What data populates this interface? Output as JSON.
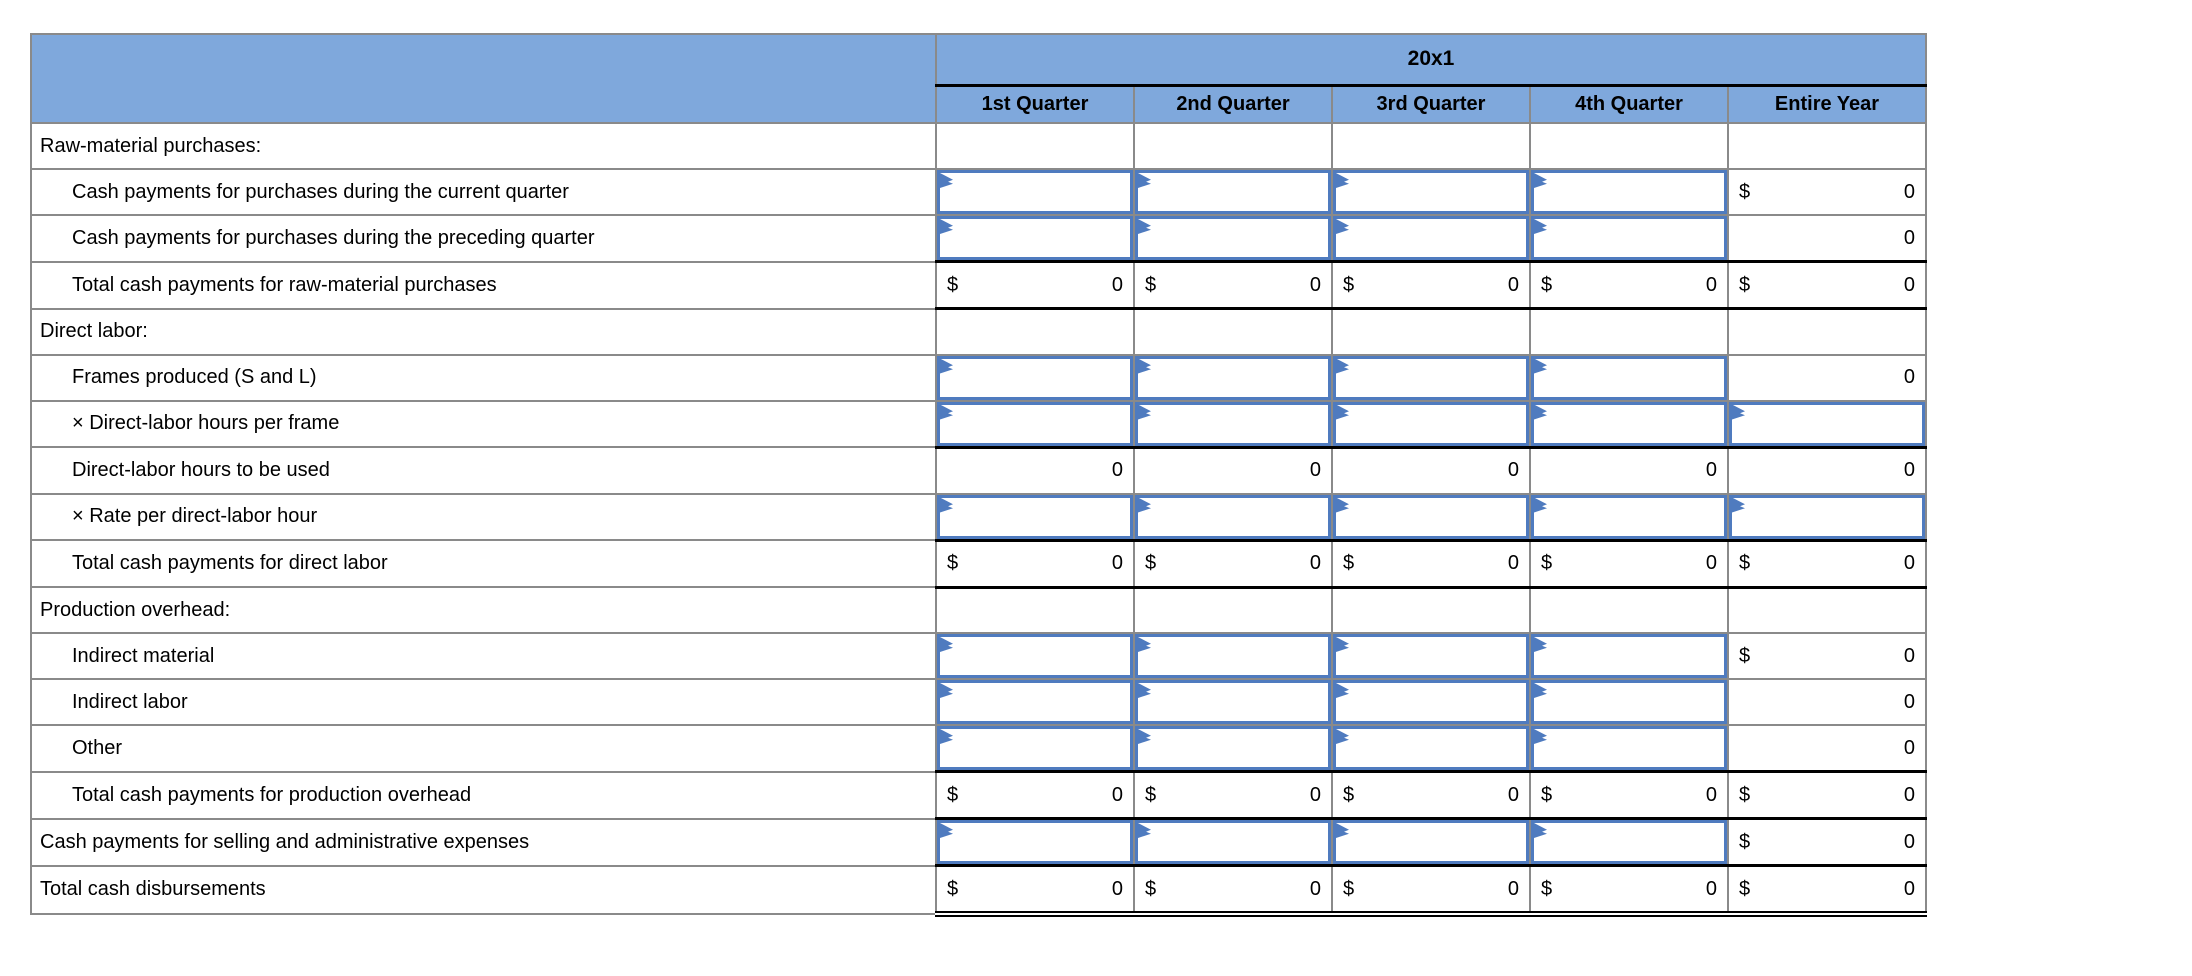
{
  "table": {
    "year_label": "20x1",
    "column_headers": [
      "1st Quarter",
      "2nd Quarter",
      "3rd Quarter",
      "4th Quarter",
      "Entire Year"
    ],
    "rows": [
      {
        "label": "Raw-material purchases:",
        "indent": 0,
        "rule": "",
        "cells": [
          {
            "t": "e"
          },
          {
            "t": "e"
          },
          {
            "t": "e"
          },
          {
            "t": "e"
          },
          {
            "t": "e"
          }
        ]
      },
      {
        "label": "Cash payments for purchases during the current quarter",
        "indent": 1,
        "rule": "",
        "cells": [
          {
            "t": "i"
          },
          {
            "t": "i"
          },
          {
            "t": "i"
          },
          {
            "t": "i"
          },
          {
            "t": "v",
            "p": "$",
            "v": "0"
          }
        ]
      },
      {
        "label": "Cash payments for purchases during the preceding quarter",
        "indent": 1,
        "rule": "",
        "cells": [
          {
            "t": "i"
          },
          {
            "t": "i"
          },
          {
            "t": "i"
          },
          {
            "t": "i"
          },
          {
            "t": "v",
            "v": "0"
          }
        ]
      },
      {
        "label": "Total cash payments for raw-material purchases",
        "indent": 1,
        "rule": "tb",
        "cells": [
          {
            "t": "v",
            "p": "$",
            "v": "0"
          },
          {
            "t": "v",
            "p": "$",
            "v": "0"
          },
          {
            "t": "v",
            "p": "$",
            "v": "0"
          },
          {
            "t": "v",
            "p": "$",
            "v": "0"
          },
          {
            "t": "v",
            "p": "$",
            "v": "0"
          }
        ]
      },
      {
        "label": "Direct labor:",
        "indent": 0,
        "rule": "",
        "cells": [
          {
            "t": "e"
          },
          {
            "t": "e"
          },
          {
            "t": "e"
          },
          {
            "t": "e"
          },
          {
            "t": "e"
          }
        ]
      },
      {
        "label": "Frames produced (S and L)",
        "indent": 1,
        "rule": "",
        "cells": [
          {
            "t": "i"
          },
          {
            "t": "i"
          },
          {
            "t": "i"
          },
          {
            "t": "i"
          },
          {
            "t": "v",
            "v": "0"
          }
        ]
      },
      {
        "label": "× Direct-labor hours per frame",
        "indent": 1,
        "rule": "",
        "cells": [
          {
            "t": "i"
          },
          {
            "t": "i"
          },
          {
            "t": "i"
          },
          {
            "t": "i"
          },
          {
            "t": "i"
          }
        ]
      },
      {
        "label": "Direct-labor hours to be used",
        "indent": 1,
        "rule": "t",
        "cells": [
          {
            "t": "v",
            "v": "0"
          },
          {
            "t": "v",
            "v": "0"
          },
          {
            "t": "v",
            "v": "0"
          },
          {
            "t": "v",
            "v": "0"
          },
          {
            "t": "v",
            "v": "0"
          }
        ]
      },
      {
        "label": "× Rate per direct-labor hour",
        "indent": 1,
        "rule": "",
        "cells": [
          {
            "t": "i"
          },
          {
            "t": "i"
          },
          {
            "t": "i"
          },
          {
            "t": "i"
          },
          {
            "t": "i"
          }
        ]
      },
      {
        "label": "Total cash payments for direct labor",
        "indent": 1,
        "rule": "tb",
        "cells": [
          {
            "t": "v",
            "p": "$",
            "v": "0"
          },
          {
            "t": "v",
            "p": "$",
            "v": "0"
          },
          {
            "t": "v",
            "p": "$",
            "v": "0"
          },
          {
            "t": "v",
            "p": "$",
            "v": "0"
          },
          {
            "t": "v",
            "p": "$",
            "v": "0"
          }
        ]
      },
      {
        "label": "Production overhead:",
        "indent": 0,
        "rule": "",
        "cells": [
          {
            "t": "e"
          },
          {
            "t": "e"
          },
          {
            "t": "e"
          },
          {
            "t": "e"
          },
          {
            "t": "e"
          }
        ]
      },
      {
        "label": "Indirect material",
        "indent": 1,
        "rule": "",
        "cells": [
          {
            "t": "i"
          },
          {
            "t": "i"
          },
          {
            "t": "i"
          },
          {
            "t": "i"
          },
          {
            "t": "v",
            "p": "$",
            "v": "0"
          }
        ]
      },
      {
        "label": "Indirect labor",
        "indent": 1,
        "rule": "",
        "cells": [
          {
            "t": "i"
          },
          {
            "t": "i"
          },
          {
            "t": "i"
          },
          {
            "t": "i"
          },
          {
            "t": "v",
            "v": "0"
          }
        ]
      },
      {
        "label": "Other",
        "indent": 1,
        "rule": "",
        "cells": [
          {
            "t": "i"
          },
          {
            "t": "i"
          },
          {
            "t": "i"
          },
          {
            "t": "i"
          },
          {
            "t": "v",
            "v": "0"
          }
        ]
      },
      {
        "label": "Total cash payments for production overhead",
        "indent": 1,
        "rule": "tb",
        "cells": [
          {
            "t": "v",
            "p": "$",
            "v": "0"
          },
          {
            "t": "v",
            "p": "$",
            "v": "0"
          },
          {
            "t": "v",
            "p": "$",
            "v": "0"
          },
          {
            "t": "v",
            "p": "$",
            "v": "0"
          },
          {
            "t": "v",
            "p": "$",
            "v": "0"
          }
        ]
      },
      {
        "label": "Cash payments for selling and administrative expenses",
        "indent": 0,
        "rule": "",
        "cells": [
          {
            "t": "i"
          },
          {
            "t": "i"
          },
          {
            "t": "i"
          },
          {
            "t": "i"
          },
          {
            "t": "v",
            "p": "$",
            "v": "0"
          }
        ]
      },
      {
        "label": "Total cash disbursements",
        "indent": 0,
        "rule": "tdb",
        "cells": [
          {
            "t": "v",
            "p": "$",
            "v": "0"
          },
          {
            "t": "v",
            "p": "$",
            "v": "0"
          },
          {
            "t": "v",
            "p": "$",
            "v": "0"
          },
          {
            "t": "v",
            "p": "$",
            "v": "0"
          },
          {
            "t": "v",
            "p": "$",
            "v": "0"
          }
        ]
      }
    ]
  },
  "colors": {
    "header_bg": "#7fa8dc",
    "input_border": "#4f7bbf",
    "gridline": "#8a8a8a",
    "rule": "#000000",
    "text": "#000000"
  },
  "icons": {
    "input_marker": "input-flag-icon"
  }
}
